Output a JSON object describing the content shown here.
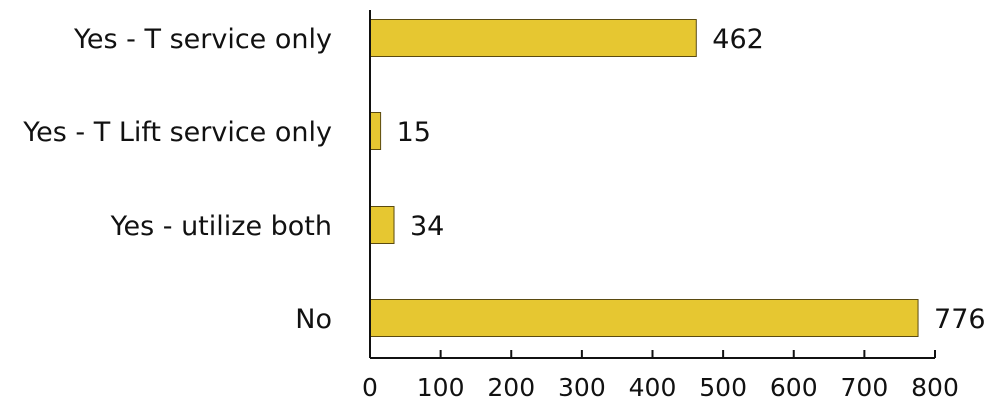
{
  "chart_data": {
    "type": "bar",
    "orientation": "horizontal",
    "categories": [
      "Yes - T service only",
      "Yes - T Lift service only",
      "Yes - utilize both",
      "No"
    ],
    "values": [
      462,
      15,
      34,
      776
    ],
    "xlim": [
      0,
      800
    ],
    "xticks": [
      0,
      100,
      200,
      300,
      400,
      500,
      600,
      700,
      800
    ],
    "grid": false,
    "legend": "none",
    "colors": {
      "bar_fill": "#e6c731",
      "bar_stroke": "#5a4a10",
      "axis": "#111111",
      "text": "#111111"
    }
  }
}
